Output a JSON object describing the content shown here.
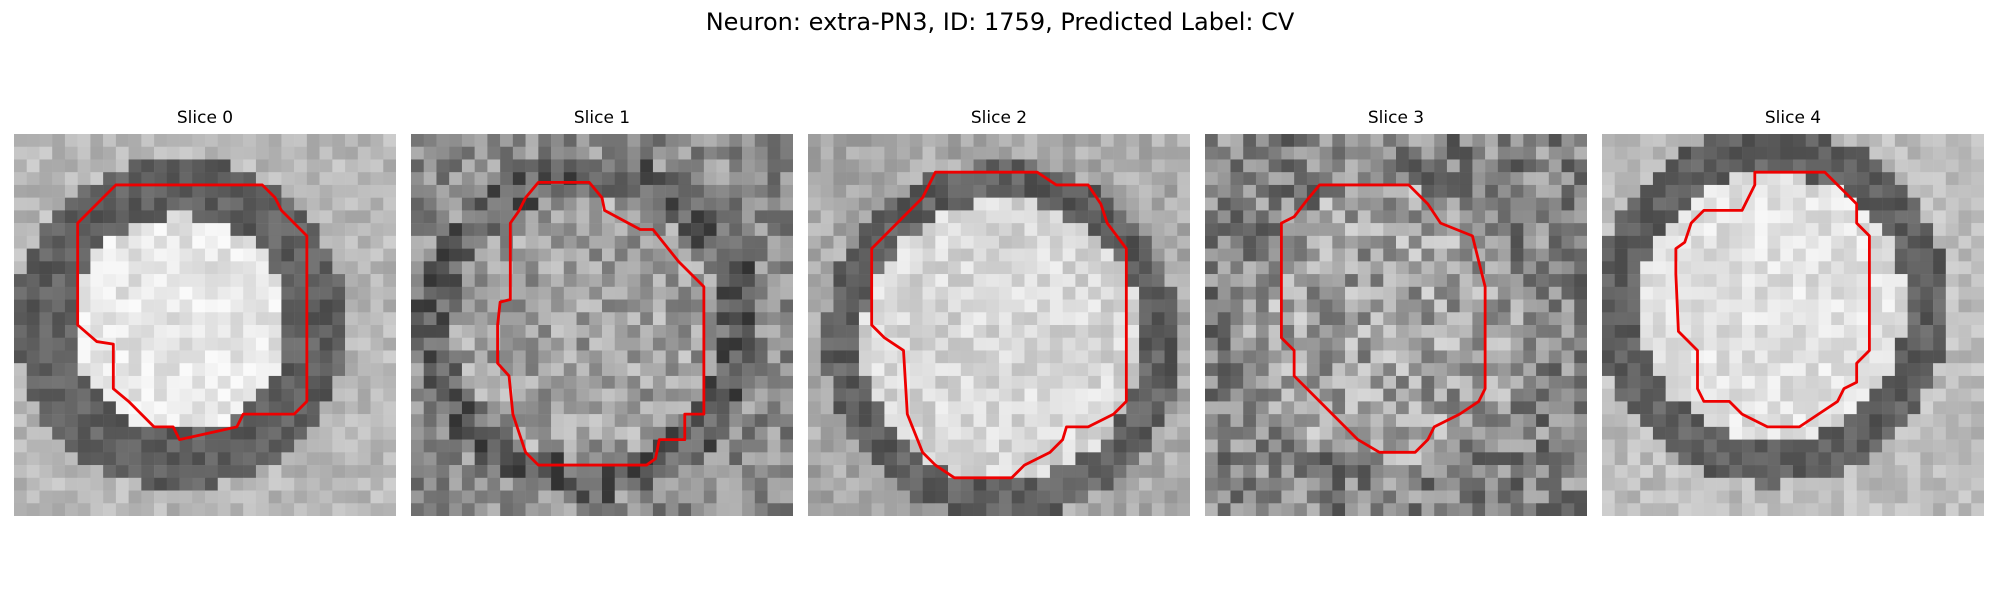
{
  "figure": {
    "title": "Neuron: extra-PN3, ID: 1759, Predicted Label: CV",
    "contour_color": "#ee0000",
    "colormap": "gray",
    "grid_size": 30
  },
  "panels": [
    {
      "title": "Slice 0",
      "seed": 11,
      "dark_ring": true,
      "ring_inner": 8.5,
      "ring_outer": 13,
      "bright": 230,
      "outside": 185,
      "noise": 22,
      "contour": [
        [
          8,
          4
        ],
        [
          19.5,
          4
        ],
        [
          20.5,
          5
        ],
        [
          21,
          6
        ],
        [
          23,
          8
        ],
        [
          23,
          21
        ],
        [
          22,
          22
        ],
        [
          18,
          22
        ],
        [
          17.5,
          23
        ],
        [
          13,
          24
        ],
        [
          12.5,
          23
        ],
        [
          11,
          23
        ],
        [
          10,
          22
        ],
        [
          9,
          21
        ],
        [
          7.8,
          20
        ],
        [
          7.8,
          16.5
        ],
        [
          6.5,
          16.3
        ],
        [
          5,
          15
        ],
        [
          5,
          7
        ],
        [
          6,
          6
        ],
        [
          7,
          5
        ]
      ]
    },
    {
      "title": "Slice 1",
      "seed": 23,
      "dark_ring": true,
      "ring_inner": 10.5,
      "ring_outer": 13.5,
      "bright": 160,
      "outside": 140,
      "noise": 45,
      "contour": [
        [
          10,
          3.8
        ],
        [
          14,
          3.8
        ],
        [
          15,
          5
        ],
        [
          15.2,
          6
        ],
        [
          18,
          7.5
        ],
        [
          19,
          7.5
        ],
        [
          21,
          10
        ],
        [
          23,
          12
        ],
        [
          23,
          22
        ],
        [
          21.5,
          22
        ],
        [
          21.5,
          24
        ],
        [
          19.5,
          24
        ],
        [
          19.2,
          25.5
        ],
        [
          18.5,
          26
        ],
        [
          14.5,
          26
        ],
        [
          10,
          26
        ],
        [
          9,
          25
        ],
        [
          8,
          22
        ],
        [
          7.7,
          19
        ],
        [
          6.8,
          18
        ],
        [
          6.8,
          15
        ],
        [
          7,
          13.2
        ],
        [
          7.8,
          13
        ],
        [
          7.8,
          7
        ],
        [
          8.5,
          6
        ],
        [
          9,
          5
        ]
      ]
    },
    {
      "title": "Slice 2",
      "seed": 37,
      "dark_ring": true,
      "ring_inner": 11,
      "ring_outer": 14,
      "bright": 215,
      "outside": 170,
      "noise": 25,
      "contour": [
        [
          10,
          3
        ],
        [
          18,
          3
        ],
        [
          19.5,
          4
        ],
        [
          22,
          4
        ],
        [
          23,
          5.5
        ],
        [
          23.5,
          7
        ],
        [
          25,
          9
        ],
        [
          25,
          21
        ],
        [
          24,
          22
        ],
        [
          22,
          23
        ],
        [
          20.3,
          23
        ],
        [
          20,
          24
        ],
        [
          19,
          25
        ],
        [
          17,
          26
        ],
        [
          16,
          27
        ],
        [
          14,
          27
        ],
        [
          11.5,
          27
        ],
        [
          10,
          26
        ],
        [
          9,
          25
        ],
        [
          7.8,
          22
        ],
        [
          7.5,
          17
        ],
        [
          6,
          16
        ],
        [
          5,
          15
        ],
        [
          5,
          9
        ],
        [
          7,
          7
        ],
        [
          9,
          5
        ]
      ]
    },
    {
      "title": "Slice 3",
      "seed": 41,
      "dark_ring": false,
      "ring_inner": 11,
      "ring_outer": 14,
      "bright": 160,
      "outside": 130,
      "noise": 55,
      "contour": [
        [
          9,
          4
        ],
        [
          16,
          4
        ],
        [
          17.5,
          5.5
        ],
        [
          18.5,
          7
        ],
        [
          21,
          8
        ],
        [
          21.5,
          10
        ],
        [
          22,
          12
        ],
        [
          22,
          20
        ],
        [
          21.5,
          21
        ],
        [
          20,
          22
        ],
        [
          18,
          23
        ],
        [
          17.5,
          24
        ],
        [
          16.5,
          25
        ],
        [
          13.7,
          25
        ],
        [
          12,
          24
        ],
        [
          10,
          22
        ],
        [
          8,
          20
        ],
        [
          7,
          19
        ],
        [
          7,
          17
        ],
        [
          6,
          16
        ],
        [
          6,
          7
        ],
        [
          7,
          6.5
        ],
        [
          8,
          5.2
        ]
      ]
    },
    {
      "title": "Slice 4",
      "seed": 53,
      "dark_ring": true,
      "ring_inner": 10.5,
      "ring_outer": 14,
      "bright": 225,
      "outside": 190,
      "noise": 22,
      "contour": [
        [
          12,
          3
        ],
        [
          17.5,
          3
        ],
        [
          19,
          4.5
        ],
        [
          20,
          5.5
        ],
        [
          20,
          7
        ],
        [
          21,
          8
        ],
        [
          21,
          17
        ],
        [
          20.5,
          17.5
        ],
        [
          20,
          18
        ],
        [
          20,
          19.5
        ],
        [
          19,
          20
        ],
        [
          18.5,
          21
        ],
        [
          17,
          22
        ],
        [
          15.5,
          23
        ],
        [
          13,
          23
        ],
        [
          11,
          22
        ],
        [
          10,
          21
        ],
        [
          9,
          21
        ],
        [
          8,
          21
        ],
        [
          7.5,
          20
        ],
        [
          7.5,
          17
        ],
        [
          6,
          15.5
        ],
        [
          5.8,
          11
        ],
        [
          5.8,
          9
        ],
        [
          6.5,
          8.5
        ],
        [
          7,
          7
        ],
        [
          8,
          6
        ],
        [
          11,
          6
        ],
        [
          11.5,
          5
        ],
        [
          12,
          4
        ]
      ]
    }
  ]
}
